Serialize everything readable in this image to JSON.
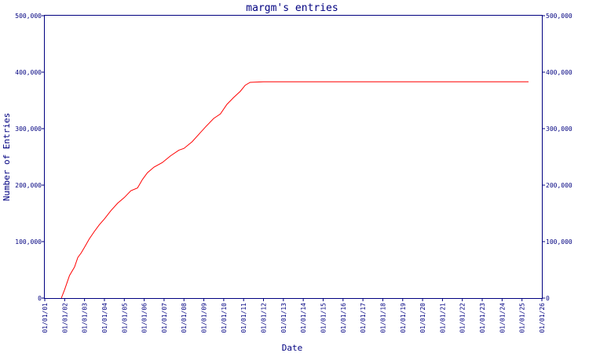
{
  "chart_data": {
    "type": "line",
    "title": "margm's entries",
    "xlabel": "Date",
    "ylabel": "Number of Entries",
    "x_tick_labels": [
      "01/01/01",
      "01/01/02",
      "01/01/03",
      "01/01/04",
      "01/01/05",
      "01/01/06",
      "01/01/07",
      "01/01/08",
      "01/01/09",
      "01/01/10",
      "01/01/11",
      "01/01/12",
      "01/01/13",
      "01/01/14",
      "01/01/15",
      "01/01/16",
      "01/01/17",
      "01/01/18",
      "01/01/19",
      "01/01/20",
      "01/01/21",
      "01/01/22",
      "01/01/23",
      "01/01/24",
      "01/01/25",
      "01/01/26"
    ],
    "y_tick_labels": [
      "0",
      "100,000",
      "200,000",
      "300,000",
      "400,000",
      "500,000"
    ],
    "ylim": [
      0,
      500000
    ],
    "xlim": [
      "2001-01-01",
      "2026-01-01"
    ],
    "grid": false,
    "colors": {
      "axis": "#000080",
      "line": "#ff0000",
      "text": "#000080"
    },
    "series": [
      {
        "points": [
          [
            "2001-11-01",
            0
          ],
          [
            "2002-01-01",
            15000
          ],
          [
            "2002-04-01",
            40000
          ],
          [
            "2002-07-01",
            55000
          ],
          [
            "2002-09-01",
            72000
          ],
          [
            "2002-11-01",
            80000
          ],
          [
            "2003-01-01",
            90000
          ],
          [
            "2003-04-01",
            105000
          ],
          [
            "2003-07-01",
            118000
          ],
          [
            "2003-10-01",
            130000
          ],
          [
            "2004-01-01",
            140000
          ],
          [
            "2004-05-01",
            155000
          ],
          [
            "2004-09-01",
            168000
          ],
          [
            "2005-01-01",
            178000
          ],
          [
            "2005-05-01",
            190000
          ],
          [
            "2005-09-01",
            195000
          ],
          [
            "2005-12-01",
            210000
          ],
          [
            "2006-03-01",
            222000
          ],
          [
            "2006-07-01",
            232000
          ],
          [
            "2006-12-01",
            240000
          ],
          [
            "2007-05-01",
            252000
          ],
          [
            "2007-10-01",
            262000
          ],
          [
            "2008-01-01",
            265000
          ],
          [
            "2008-06-01",
            277000
          ],
          [
            "2008-10-01",
            290000
          ],
          [
            "2009-02-01",
            303000
          ],
          [
            "2009-07-01",
            318000
          ],
          [
            "2009-11-01",
            326000
          ],
          [
            "2010-03-01",
            343000
          ],
          [
            "2010-07-01",
            355000
          ],
          [
            "2010-11-01",
            366000
          ],
          [
            "2011-02-01",
            377000
          ],
          [
            "2011-05-01",
            382000
          ],
          [
            "2012-01-01",
            383000
          ],
          [
            "2015-01-01",
            383000
          ],
          [
            "2020-01-01",
            383000
          ],
          [
            "2025-05-01",
            383000
          ]
        ]
      }
    ]
  }
}
